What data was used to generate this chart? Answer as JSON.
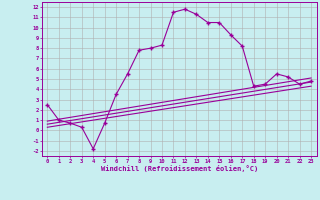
{
  "title": "",
  "xlabel": "Windchill (Refroidissement éolien,°C)",
  "bg_color": "#c8eef0",
  "line_color": "#990099",
  "grid_color": "#b0b0b0",
  "xlim": [
    -0.5,
    23.5
  ],
  "ylim": [
    -2.5,
    12.5
  ],
  "xticks": [
    0,
    1,
    2,
    3,
    4,
    5,
    6,
    7,
    8,
    9,
    10,
    11,
    12,
    13,
    14,
    15,
    16,
    17,
    18,
    19,
    20,
    21,
    22,
    23
  ],
  "yticks": [
    -2,
    -1,
    0,
    1,
    2,
    3,
    4,
    5,
    6,
    7,
    8,
    9,
    10,
    11,
    12
  ],
  "main_x": [
    0,
    1,
    2,
    3,
    4,
    5,
    6,
    7,
    8,
    9,
    10,
    11,
    12,
    13,
    14,
    15,
    16,
    17,
    18,
    19,
    20,
    21,
    22,
    23
  ],
  "main_y": [
    2.5,
    1.0,
    0.7,
    0.3,
    -1.8,
    0.7,
    3.5,
    5.5,
    7.8,
    8.0,
    8.3,
    11.5,
    11.8,
    11.3,
    10.5,
    10.5,
    9.3,
    8.2,
    4.3,
    4.5,
    5.5,
    5.2,
    4.5,
    4.8
  ],
  "line1_x": [
    0,
    23
  ],
  "line1_y": [
    0.3,
    4.3
  ],
  "line2_x": [
    0,
    23
  ],
  "line2_y": [
    0.6,
    4.7
  ],
  "line3_x": [
    0,
    23
  ],
  "line3_y": [
    0.9,
    5.1
  ]
}
